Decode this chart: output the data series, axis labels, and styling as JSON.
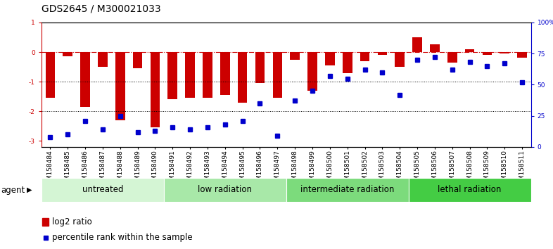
{
  "title": "GDS2645 / M300021033",
  "samples": [
    "GSM158484",
    "GSM158485",
    "GSM158486",
    "GSM158487",
    "GSM158488",
    "GSM158489",
    "GSM158490",
    "GSM158491",
    "GSM158492",
    "GSM158493",
    "GSM158494",
    "GSM158495",
    "GSM158496",
    "GSM158497",
    "GSM158498",
    "GSM158499",
    "GSM158500",
    "GSM158501",
    "GSM158502",
    "GSM158503",
    "GSM158504",
    "GSM158505",
    "GSM158506",
    "GSM158507",
    "GSM158508",
    "GSM158509",
    "GSM158510",
    "GSM158511"
  ],
  "log2_ratio": [
    -1.55,
    -0.15,
    -1.85,
    -0.5,
    -2.3,
    -0.55,
    -2.55,
    -1.6,
    -1.55,
    -1.55,
    -1.45,
    -1.7,
    -1.05,
    -1.55,
    -0.25,
    -1.3,
    -0.45,
    -0.7,
    -0.3,
    -0.1,
    -0.5,
    0.5,
    0.25,
    -0.35,
    0.1,
    -0.1,
    -0.05,
    -0.2
  ],
  "percentile_rank": [
    8,
    10,
    21,
    14,
    25,
    12,
    13,
    16,
    14,
    16,
    18,
    21,
    35,
    9,
    37,
    45,
    57,
    55,
    62,
    60,
    42,
    70,
    72,
    62,
    68,
    65,
    67,
    52
  ],
  "groups": [
    {
      "label": "untreated",
      "start": 0,
      "end": 6,
      "color": "#d4f5d4"
    },
    {
      "label": "low radiation",
      "start": 7,
      "end": 13,
      "color": "#a8e8a8"
    },
    {
      "label": "intermediate radiation",
      "start": 14,
      "end": 20,
      "color": "#7cdb7c"
    },
    {
      "label": "lethal radiation",
      "start": 21,
      "end": 27,
      "color": "#44cc44"
    }
  ],
  "bar_color": "#cc0000",
  "dot_color": "#0000cc",
  "ylim_left": [
    -3.2,
    1.0
  ],
  "ylim_right": [
    0,
    100
  ],
  "hline_y": 0,
  "dotted_lines": [
    -1.0,
    -2.0
  ],
  "background_color": "#ffffff",
  "title_fontsize": 10,
  "tick_fontsize": 6.5,
  "legend_fontsize": 8.5,
  "group_label_fontsize": 8.5
}
